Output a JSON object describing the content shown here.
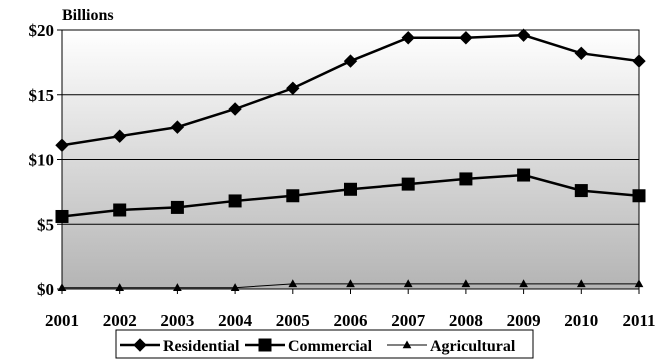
{
  "chart_data": {
    "type": "line",
    "y_unit_label": "Billions",
    "categories": [
      "2001",
      "2002",
      "2003",
      "2004",
      "2005",
      "2006",
      "2007",
      "2008",
      "2009",
      "2010",
      "2011"
    ],
    "ylim": [
      0,
      20
    ],
    "yticks": [
      0,
      5,
      10,
      15,
      20
    ],
    "ytick_labels": [
      "$0",
      "$5",
      "$10",
      "$15",
      "$20"
    ],
    "grid": "horizontal",
    "legend_position": "bottom",
    "background": "gradient-white-to-gray",
    "series": [
      {
        "name": "Residential",
        "marker": "diamond",
        "color": "#000000",
        "values": [
          11.1,
          11.8,
          12.5,
          13.9,
          15.5,
          17.6,
          19.4,
          19.4,
          19.6,
          18.2,
          17.6
        ]
      },
      {
        "name": "Commercial",
        "marker": "square",
        "color": "#000000",
        "values": [
          5.6,
          6.1,
          6.3,
          6.8,
          7.2,
          7.7,
          8.1,
          8.5,
          8.8,
          7.6,
          7.2
        ]
      },
      {
        "name": "Agricultural",
        "marker": "triangle",
        "color": "#000000",
        "values": [
          0.1,
          0.1,
          0.1,
          0.1,
          0.4,
          0.4,
          0.4,
          0.4,
          0.4,
          0.4,
          0.4
        ]
      }
    ]
  }
}
